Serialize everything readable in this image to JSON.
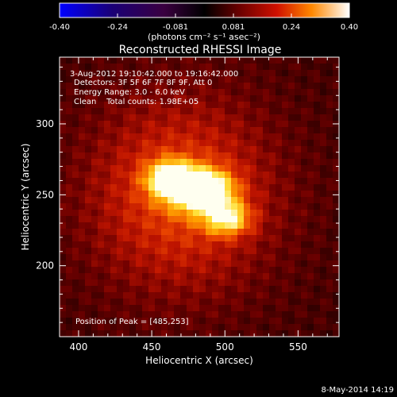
{
  "chart_data": {
    "type": "heatmap",
    "title": "Reconstructed RHESSI Image",
    "xlabel": "Heliocentric X (arcsec)",
    "ylabel": "Heliocentric Y (arcsec)",
    "xlim": [
      387,
      578
    ],
    "ylim": [
      150,
      347
    ],
    "x_ticks": [
      400,
      450,
      500,
      550
    ],
    "y_ticks": [
      200,
      250,
      300
    ],
    "colorbar": {
      "min": -0.4,
      "max": 0.4,
      "ticks": [
        "-0.40",
        "-0.24",
        "-0.081",
        "0.081",
        "0.24",
        "0.40"
      ],
      "units": "(photons cm⁻² s⁻¹ asec⁻²)"
    },
    "info_lines": [
      "3-Aug-2012 19:10:42.000 to 19:16:42.000",
      "Detectors: 3F 5F 6F 7F 8F 9F, Att 0",
      "Energy Range: 3.0 - 6.0 keV",
      "Clean    Total counts: 1.98E+05"
    ],
    "peak_label": "Position of Peak = [485,253]",
    "peak": [
      485,
      253
    ],
    "sources": [
      {
        "x": 485,
        "y": 253,
        "amp": 0.4,
        "sx": 14,
        "sy": 10
      },
      {
        "x": 462,
        "y": 261,
        "amp": 0.3,
        "sx": 11,
        "sy": 9
      },
      {
        "x": 502,
        "y": 233,
        "amp": 0.26,
        "sx": 11,
        "sy": 8
      },
      {
        "x": 470,
        "y": 250,
        "amp": 0.2,
        "sx": 45,
        "sy": 48
      }
    ],
    "date_stamp": "8-May-2014 14:19"
  }
}
